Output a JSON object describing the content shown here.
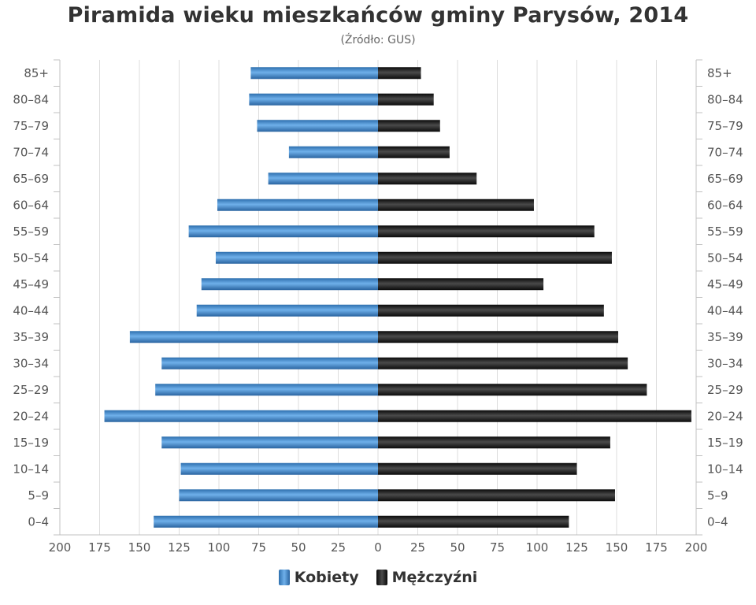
{
  "chart_data": {
    "type": "bar",
    "orientation": "horizontal",
    "title": "Piramida wieku mieszkańców gminy Parysów, 2014",
    "subtitle": "(Źródło: GUS)",
    "categories": [
      "0–4",
      "5–9",
      "10–14",
      "15–19",
      "20–24",
      "25–29",
      "30–34",
      "35–39",
      "40–44",
      "45–49",
      "50–54",
      "55–59",
      "60–64",
      "65–69",
      "70–74",
      "75–79",
      "80–84",
      "85+"
    ],
    "series": [
      {
        "name": "Kobiety",
        "color": "#3b7fc4",
        "values": [
          141,
          125,
          124,
          136,
          172,
          140,
          136,
          156,
          114,
          111,
          102,
          119,
          101,
          69,
          56,
          76,
          81,
          80
        ]
      },
      {
        "name": "Mężczyźni",
        "color": "#1a1a1a",
        "values": [
          120,
          149,
          125,
          146,
          197,
          169,
          157,
          151,
          142,
          104,
          147,
          136,
          98,
          62,
          45,
          39,
          35,
          27
        ]
      }
    ],
    "xlim": [
      -200,
      200
    ],
    "xticks": [
      200,
      175,
      150,
      125,
      100,
      75,
      50,
      25,
      0,
      25,
      50,
      75,
      100,
      125,
      150,
      175,
      200
    ],
    "grid": true,
    "legend": "bottom-center"
  },
  "legend": {
    "female_label": "Kobiety",
    "male_label": "Mężczyźni"
  }
}
